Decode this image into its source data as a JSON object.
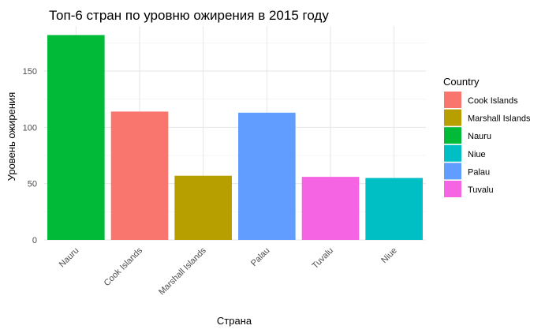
{
  "chart_data": {
    "type": "bar",
    "title": "Топ-6 стран по уровню ожирения в 2015 году",
    "xlabel": "Страна",
    "ylabel": "Уровень ожирения",
    "categories": [
      "Nauru",
      "Cook Islands",
      "Marshall Islands",
      "Palau",
      "Tuvalu",
      "Niue"
    ],
    "values": [
      182,
      114,
      57,
      113,
      56,
      55
    ],
    "ylim": [
      0,
      190
    ],
    "yticks": [
      0,
      50,
      100,
      150
    ],
    "grid": true,
    "legend": {
      "title": "Country",
      "placement": "right",
      "entries": [
        "Cook Islands",
        "Marshall Islands",
        "Nauru",
        "Niue",
        "Palau",
        "Tuvalu"
      ]
    },
    "colors": {
      "Cook Islands": "#F8766D",
      "Marshall Islands": "#B79F00",
      "Nauru": "#00BA38",
      "Niue": "#00BFC4",
      "Palau": "#619CFF",
      "Tuvalu": "#F564E3"
    }
  }
}
